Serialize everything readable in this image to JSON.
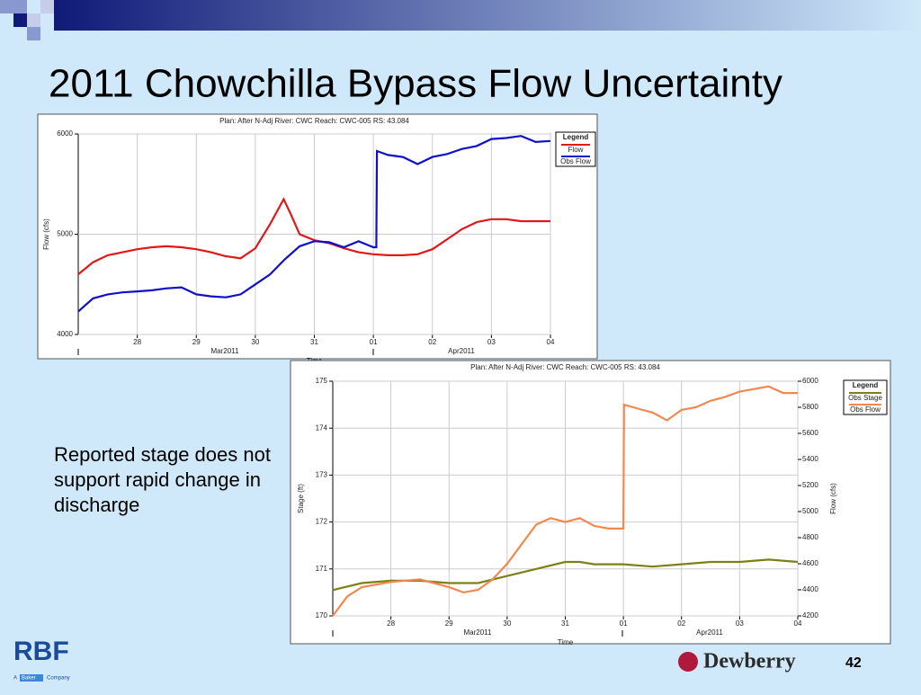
{
  "slide": {
    "title": "2011 Chowchilla Bypass Flow Uncertainty",
    "note": "Reported stage does not support rapid change in discharge",
    "page_number": "42",
    "left_logo": "RBF",
    "left_logo_sub_1": "A",
    "left_logo_sub_2": "Baker",
    "left_logo_sub_3": "Company",
    "right_logo": "Dewberry"
  },
  "chart_data": [
    {
      "type": "line",
      "title": "Plan: After N-Adj   River: CWC   Reach: CWC-005   RS: 43.084",
      "ylabel": "Flow (cfs)",
      "xlabel": "Time",
      "month_labels": [
        "Mar2011",
        "Apr2011"
      ],
      "legend_title": "Legend",
      "xlim": [
        0,
        8
      ],
      "xticks": [
        {
          "value": 1,
          "label": "28"
        },
        {
          "value": 2,
          "label": "29"
        },
        {
          "value": 3,
          "label": "30"
        },
        {
          "value": 4,
          "label": "31"
        },
        {
          "value": 5,
          "label": "01"
        },
        {
          "value": 6,
          "label": "02"
        },
        {
          "value": 7,
          "label": "03"
        },
        {
          "value": 8,
          "label": "04"
        }
      ],
      "ylim": [
        4000,
        6000
      ],
      "yticks": [
        4000,
        5000,
        6000
      ],
      "grid": true,
      "series": [
        {
          "name": "Flow",
          "color": "#e01818",
          "x": [
            0,
            0.25,
            0.5,
            0.75,
            1,
            1.25,
            1.5,
            1.75,
            2,
            2.25,
            2.5,
            2.75,
            3,
            3.25,
            3.48,
            3.6,
            3.75,
            4,
            4.25,
            4.5,
            4.75,
            5,
            5.25,
            5.5,
            5.75,
            6,
            6.25,
            6.5,
            6.75,
            7,
            7.25,
            7.5,
            7.75,
            8
          ],
          "values": [
            4600,
            4720,
            4790,
            4820,
            4850,
            4870,
            4880,
            4870,
            4850,
            4820,
            4780,
            4760,
            4860,
            5100,
            5350,
            5200,
            5000,
            4940,
            4910,
            4860,
            4820,
            4800,
            4790,
            4790,
            4800,
            4850,
            4950,
            5050,
            5120,
            5150,
            5150,
            5130,
            5130,
            5130
          ]
        },
        {
          "name": "Obs Flow",
          "color": "#1010c8",
          "x": [
            0,
            0.25,
            0.5,
            0.75,
            1,
            1.25,
            1.5,
            1.75,
            2,
            2.25,
            2.5,
            2.75,
            3,
            3.25,
            3.5,
            3.75,
            4,
            4.25,
            4.5,
            4.75,
            5,
            5.05,
            5.06,
            5.25,
            5.5,
            5.75,
            6,
            6.25,
            6.5,
            6.75,
            7,
            7.25,
            7.5,
            7.75,
            8
          ],
          "values": [
            4230,
            4360,
            4400,
            4420,
            4430,
            4440,
            4460,
            4470,
            4400,
            4380,
            4370,
            4400,
            4500,
            4600,
            4750,
            4880,
            4930,
            4920,
            4870,
            4930,
            4870,
            4870,
            5830,
            5790,
            5770,
            5700,
            5770,
            5800,
            5850,
            5880,
            5950,
            5960,
            5980,
            5920,
            5930
          ]
        }
      ]
    },
    {
      "type": "line",
      "title": "Plan: After N-Adj   River: CWC   Reach: CWC-005   RS: 43.084",
      "ylabel": "Stage (ft)",
      "y2label": "Flow (cfs)",
      "xlabel": "Time",
      "month_labels": [
        "Mar2011",
        "Apr2011"
      ],
      "legend_title": "Legend",
      "xlim": [
        0,
        8
      ],
      "xticks": [
        {
          "value": 1,
          "label": "28"
        },
        {
          "value": 2,
          "label": "29"
        },
        {
          "value": 3,
          "label": "30"
        },
        {
          "value": 4,
          "label": "31"
        },
        {
          "value": 5,
          "label": "01"
        },
        {
          "value": 6,
          "label": "02"
        },
        {
          "value": 7,
          "label": "03"
        },
        {
          "value": 8,
          "label": "04"
        }
      ],
      "ylim": [
        170,
        175
      ],
      "yticks": [
        170,
        171,
        172,
        173,
        174,
        175
      ],
      "y2lim": [
        4200,
        6000
      ],
      "y2ticks": [
        4200,
        4400,
        4600,
        4800,
        5000,
        5200,
        5400,
        5600,
        5800,
        6000
      ],
      "grid": true,
      "series": [
        {
          "name": "Obs Stage",
          "color": "#7f7f18",
          "x": [
            0,
            0.5,
            1,
            1.5,
            2,
            2.5,
            3,
            3.5,
            4,
            4.25,
            4.5,
            5,
            5.5,
            6,
            6.5,
            7,
            7.5,
            8
          ],
          "values": [
            170.55,
            170.7,
            170.75,
            170.75,
            170.7,
            170.7,
            170.85,
            171.0,
            171.15,
            171.15,
            171.1,
            171.1,
            171.05,
            171.1,
            171.15,
            171.15,
            171.2,
            171.15
          ]
        },
        {
          "name": "Obs Flow",
          "color": "#f08850",
          "axis": "y2",
          "x": [
            0,
            0.25,
            0.5,
            1,
            1.5,
            2,
            2.25,
            2.5,
            2.75,
            3,
            3.25,
            3.5,
            3.75,
            4,
            4.25,
            4.5,
            4.75,
            5,
            5.01,
            5.25,
            5.5,
            5.75,
            6,
            6.25,
            6.5,
            6.75,
            7,
            7.25,
            7.5,
            7.75,
            8
          ],
          "values": [
            4200,
            4350,
            4420,
            4460,
            4480,
            4420,
            4380,
            4400,
            4480,
            4600,
            4750,
            4900,
            4950,
            4920,
            4950,
            4890,
            4870,
            4870,
            5820,
            5790,
            5760,
            5700,
            5780,
            5800,
            5850,
            5880,
            5920,
            5940,
            5960,
            5910,
            5910
          ]
        }
      ]
    }
  ]
}
